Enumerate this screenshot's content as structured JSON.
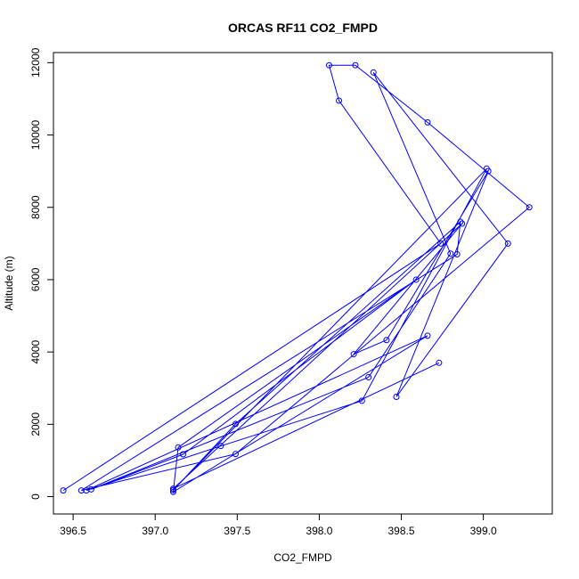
{
  "chart_data": {
    "type": "line",
    "title": "ORCAS RF11 CO2_FMPD",
    "xlabel": "CO2_FMPD",
    "ylabel": "Altitude (m)",
    "xlim": [
      396.38,
      399.42
    ],
    "ylim": [
      -480,
      12280
    ],
    "x_ticks": [
      396.5,
      397.0,
      397.5,
      398.0,
      398.5,
      399.0
    ],
    "x_tick_labels": [
      "396.5",
      "397.0",
      "397.5",
      "398.0",
      "398.5",
      "399.0"
    ],
    "y_ticks": [
      0,
      2000,
      4000,
      6000,
      8000,
      10000,
      12000
    ],
    "y_tick_labels": [
      "0",
      "2000",
      "4000",
      "6000",
      "8000",
      "10000",
      "12000"
    ],
    "series": [
      {
        "color": "#0000ff",
        "marker": "open-circle",
        "points": [
          [
            396.44,
            170
          ],
          [
            398.74,
            7000
          ],
          [
            398.12,
            10950
          ],
          [
            398.06,
            11930
          ],
          [
            398.22,
            11930
          ],
          [
            398.66,
            10350
          ],
          [
            399.28,
            8000
          ],
          [
            397.49,
            1180
          ],
          [
            396.55,
            170
          ],
          [
            398.84,
            6700
          ],
          [
            398.86,
            7600
          ],
          [
            397.49,
            2010
          ],
          [
            397.11,
            180
          ],
          [
            399.02,
            9070
          ],
          [
            398.26,
            2650
          ],
          [
            397.4,
            1400
          ],
          [
            396.58,
            170
          ],
          [
            398.66,
            4450
          ],
          [
            397.11,
            130
          ],
          [
            397.14,
            1360
          ],
          [
            398.59,
            6000
          ],
          [
            397.17,
            1170
          ],
          [
            396.61,
            200
          ],
          [
            398.3,
            3300
          ],
          [
            398.8,
            6720
          ],
          [
            398.33,
            11730
          ],
          [
            399.15,
            7000
          ],
          [
            398.47,
            2760
          ],
          [
            399.03,
            9000
          ],
          [
            398.41,
            4330
          ],
          [
            398.21,
            3940
          ],
          [
            398.87,
            7550
          ],
          [
            397.11,
            220
          ],
          [
            398.73,
            3700
          ]
        ]
      }
    ]
  }
}
